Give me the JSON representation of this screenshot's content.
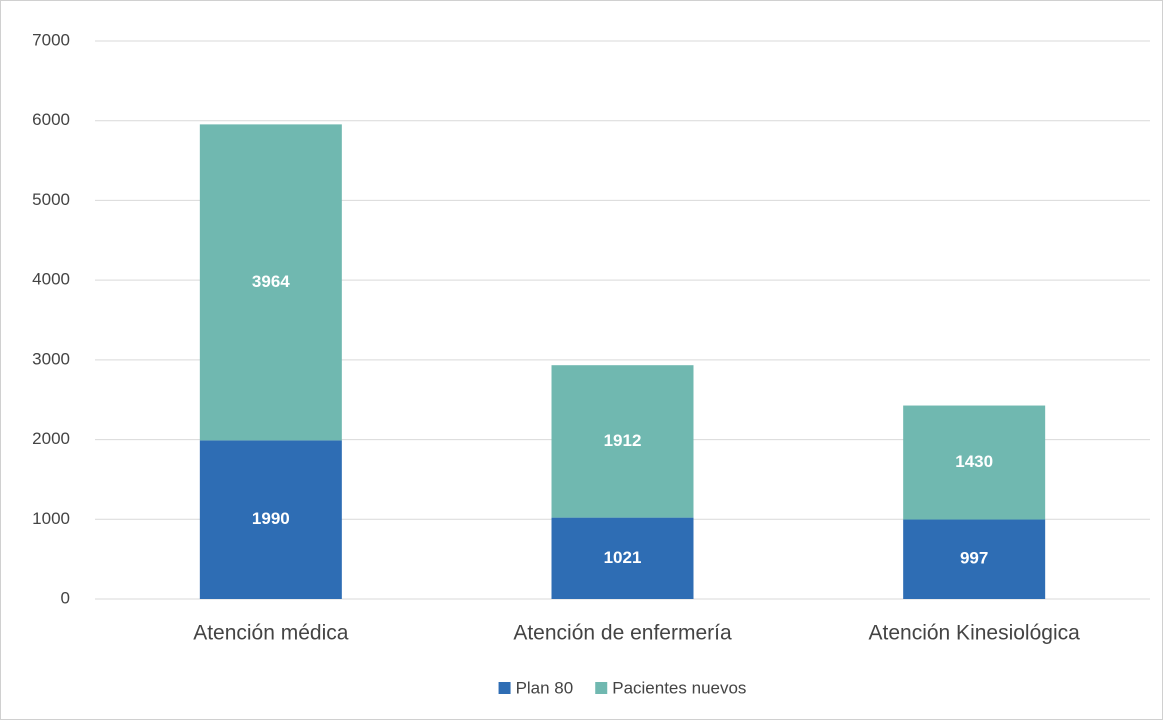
{
  "chart_data": {
    "type": "bar",
    "stacked": true,
    "categories": [
      "Atención médica",
      "Atención de enfermería",
      "Atención Kinesiológica"
    ],
    "series": [
      {
        "name": "Plan 80",
        "color": "#2e6db4",
        "values": [
          1990,
          1021,
          997
        ]
      },
      {
        "name": "Pacientes nuevos",
        "color": "#70b8b0",
        "values": [
          3964,
          1912,
          1430
        ]
      }
    ],
    "ylim": [
      0,
      7000
    ],
    "yticks": [
      0,
      1000,
      2000,
      3000,
      4000,
      5000,
      6000,
      7000
    ],
    "grid": true,
    "legend": "bottom"
  }
}
